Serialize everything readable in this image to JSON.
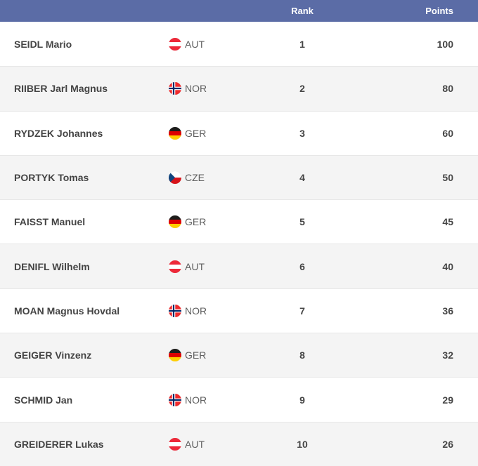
{
  "table": {
    "header": {
      "rank_label": "Rank",
      "points_label": "Points"
    },
    "rows": [
      {
        "name": "SEIDL Mario",
        "country": "AUT",
        "flag": "austria-flag-icon",
        "rank": "1",
        "points": "100"
      },
      {
        "name": "RIIBER Jarl Magnus",
        "country": "NOR",
        "flag": "norway-flag-icon",
        "rank": "2",
        "points": "80"
      },
      {
        "name": "RYDZEK Johannes",
        "country": "GER",
        "flag": "germany-flag-icon",
        "rank": "3",
        "points": "60"
      },
      {
        "name": "PORTYK Tomas",
        "country": "CZE",
        "flag": "czechia-flag-icon",
        "rank": "4",
        "points": "50"
      },
      {
        "name": "FAISST Manuel",
        "country": "GER",
        "flag": "germany-flag-icon",
        "rank": "5",
        "points": "45"
      },
      {
        "name": "DENIFL Wilhelm",
        "country": "AUT",
        "flag": "austria-flag-icon",
        "rank": "6",
        "points": "40"
      },
      {
        "name": "MOAN Magnus Hovdal",
        "country": "NOR",
        "flag": "norway-flag-icon",
        "rank": "7",
        "points": "36"
      },
      {
        "name": "GEIGER Vinzenz",
        "country": "GER",
        "flag": "germany-flag-icon",
        "rank": "8",
        "points": "32"
      },
      {
        "name": "SCHMID Jan",
        "country": "NOR",
        "flag": "norway-flag-icon",
        "rank": "9",
        "points": "29"
      },
      {
        "name": "GREIDERER Lukas",
        "country": "AUT",
        "flag": "austria-flag-icon",
        "rank": "10",
        "points": "26"
      }
    ]
  },
  "colors": {
    "header_bg": "#5b6ca6",
    "header_text": "#ffffff",
    "row_bg": "#ffffff",
    "row_alt_bg": "#f4f4f4",
    "separator": "#e7e7e7",
    "name_text": "#444444",
    "country_text": "#5f5f5f",
    "value_text": "#454545",
    "flag_aut_red": "#ed2939",
    "flag_ger_black": "#1d1d1b",
    "flag_ger_red": "#dd0000",
    "flag_ger_gold": "#ffce00",
    "flag_nor_red": "#ef2b2d",
    "flag_nor_blue": "#002868",
    "flag_cze_red": "#d7141a",
    "flag_cze_blue": "#11457e"
  }
}
